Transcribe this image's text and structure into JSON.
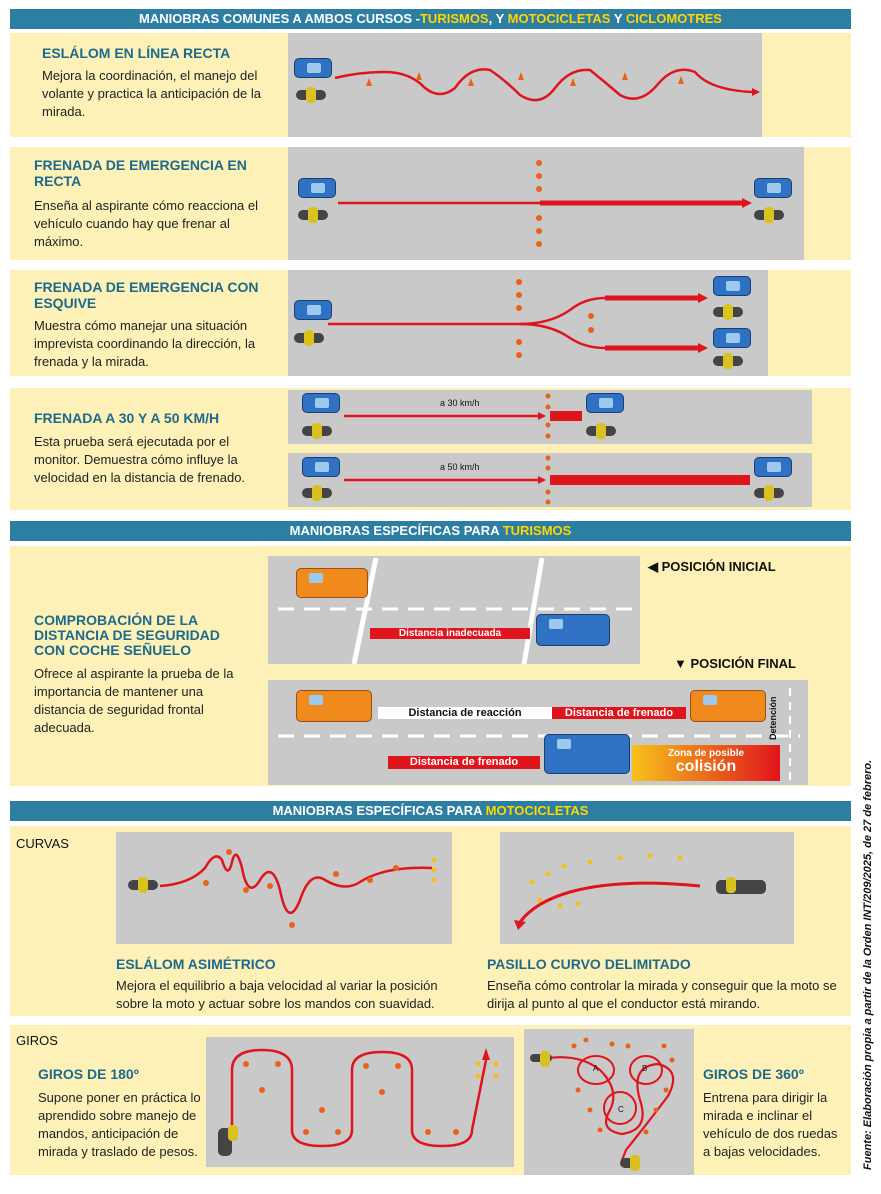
{
  "sections": {
    "common": {
      "prefix": "MANIOBRAS COMUNES A AMBOS CURSOS -",
      "hl1": "TURISMOS",
      "sep1": ", Y ",
      "hl2": "MOTOCICLETAS",
      "sep2": " Y ",
      "hl3": "CICLOMOTRES"
    },
    "cars": {
      "prefix": "MANIOBRAS ESPECÍFICAS PARA ",
      "hl": "TURISMOS"
    },
    "motos": {
      "prefix": "MANIOBRAS ESPECÍFICAS PARA ",
      "hl": "MOTOCICLETAS"
    }
  },
  "maneuvers": {
    "slalom": {
      "title": "ESLÁLOM EN LÍNEA RECTA",
      "desc": "Mejora la coordinación, el manejo del volante y practica la anticipación de la mirada."
    },
    "emergency": {
      "title": "FRENADA DE EMERGENCIA EN RECTA",
      "desc": "Enseña al aspirante cómo reacciona el vehículo cuando hay que frenar al máximo."
    },
    "dodge": {
      "title": "FRENADA DE EMERGENCIA CON ESQUIVE",
      "desc": "Muestra cómo manejar una situación imprevista coordinando la dirección, la frenada y la mirada."
    },
    "speeds": {
      "title": "FRENADA A 30 Y A 50 KM/H",
      "desc": "Esta prueba será ejecutada por el monitor. Demuestra cómo influye la velocidad en la distancia de frenado.",
      "speed30": "a 30 km/h",
      "speed50": "a 50 km/h"
    },
    "safety": {
      "title": "COMPROBACIÓN DE LA DISTANCIA DE SEGURIDAD CON COCHE SEÑUELO",
      "desc": "Ofrece al aspirante la prueba de la importancia de mantener una distancia de seguridad frontal adecuada.",
      "initial": "POSICIÓN INICIAL",
      "final": "POSICIÓN FINAL",
      "inadequate": "Distancia inadecuada",
      "reaction": "Distancia de reacción",
      "braking": "Distancia de frenado",
      "detention": "Detención",
      "zone": "Zona de posible",
      "collision": "colisión"
    },
    "curves": {
      "label": "CURVAS"
    },
    "asym": {
      "title": "ESLÁLOM ASIMÉTRICO",
      "desc": "Mejora el equilibrio a baja velocidad al variar la posición sobre la moto y actuar sobre los mandos con suavidad."
    },
    "corridor": {
      "title": "PASILLO CURVO DELIMITADO",
      "desc": "Enseña cómo controlar la mirada y conseguir que la moto se dirija al punto al que el conductor está mirando."
    },
    "turns": {
      "label": "GIROS"
    },
    "turn180": {
      "title": "GIROS DE 180º",
      "desc": "Supone poner en práctica lo aprendido sobre manejo de mandos, anticipación de mirada y traslado de pesos."
    },
    "turn360": {
      "title": "GIROS DE 360º",
      "desc": "Entrena para dirigir la mirada e inclinar el vehículo de dos ruedas a bajas velocidades.",
      "a": "A",
      "b": "B",
      "c": "C"
    }
  },
  "source": "Fuente: Elaboración propia a partir de la Orden INT/209/2025, de 27 de febrero."
}
